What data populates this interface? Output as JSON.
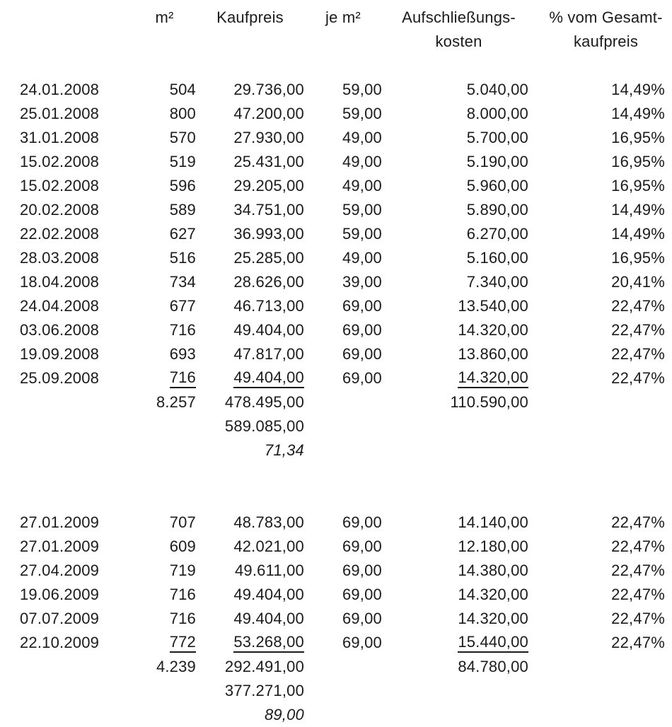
{
  "page": {
    "background_color": "#ffffff",
    "text_color": "#1b1b1b"
  },
  "table": {
    "headers": {
      "date": "",
      "m2": "m²",
      "kaufpreis": "Kaufpreis",
      "je_m2": "je m²",
      "aufschliessungskosten_line1": "Aufschließungs-",
      "aufschliessungskosten_line2": "kosten",
      "pct_line1": "% vom Gesamt-",
      "pct_line2": "kaufpreis"
    },
    "sections": [
      {
        "year": "2008",
        "rows": [
          {
            "date": "24.01.2008",
            "m2": "504",
            "kaufpreis": "29.736,00",
            "je_m2": "59,00",
            "aufschliessung": "5.040,00",
            "pct": "14,49%"
          },
          {
            "date": "25.01.2008",
            "m2": "800",
            "kaufpreis": "47.200,00",
            "je_m2": "59,00",
            "aufschliessung": "8.000,00",
            "pct": "14,49%"
          },
          {
            "date": "31.01.2008",
            "m2": "570",
            "kaufpreis": "27.930,00",
            "je_m2": "49,00",
            "aufschliessung": "5.700,00",
            "pct": "16,95%"
          },
          {
            "date": "15.02.2008",
            "m2": "519",
            "kaufpreis": "25.431,00",
            "je_m2": "49,00",
            "aufschliessung": "5.190,00",
            "pct": "16,95%"
          },
          {
            "date": "15.02.2008",
            "m2": "596",
            "kaufpreis": "29.205,00",
            "je_m2": "49,00",
            "aufschliessung": "5.960,00",
            "pct": "16,95%"
          },
          {
            "date": "20.02.2008",
            "m2": "589",
            "kaufpreis": "34.751,00",
            "je_m2": "59,00",
            "aufschliessung": "5.890,00",
            "pct": "14,49%"
          },
          {
            "date": "22.02.2008",
            "m2": "627",
            "kaufpreis": "36.993,00",
            "je_m2": "59,00",
            "aufschliessung": "6.270,00",
            "pct": "14,49%"
          },
          {
            "date": "28.03.2008",
            "m2": "516",
            "kaufpreis": "25.285,00",
            "je_m2": "49,00",
            "aufschliessung": "5.160,00",
            "pct": "16,95%"
          },
          {
            "date": "18.04.2008",
            "m2": "734",
            "kaufpreis": "28.626,00",
            "je_m2": "39,00",
            "aufschliessung": "7.340,00",
            "pct": "20,41%"
          },
          {
            "date": "24.04.2008",
            "m2": "677",
            "kaufpreis": "46.713,00",
            "je_m2": "69,00",
            "aufschliessung": "13.540,00",
            "pct": "22,47%"
          },
          {
            "date": "03.06.2008",
            "m2": "716",
            "kaufpreis": "49.404,00",
            "je_m2": "69,00",
            "aufschliessung": "14.320,00",
            "pct": "22,47%"
          },
          {
            "date": "19.09.2008",
            "m2": "693",
            "kaufpreis": "47.817,00",
            "je_m2": "69,00",
            "aufschliessung": "13.860,00",
            "pct": "22,47%"
          },
          {
            "date": "25.09.2008",
            "m2": "716",
            "kaufpreis": "49.404,00",
            "je_m2": "69,00",
            "aufschliessung": "14.320,00",
            "pct": "22,47%"
          }
        ],
        "sum_m2": "8.257",
        "sum_kaufpreis": "478.495,00",
        "sum_aufschliessung": "110.590,00",
        "total_gesamt": "589.085,00",
        "avg_je_m2": "71,34"
      },
      {
        "year": "2009",
        "rows": [
          {
            "date": "27.01.2009",
            "m2": "707",
            "kaufpreis": "48.783,00",
            "je_m2": "69,00",
            "aufschliessung": "14.140,00",
            "pct": "22,47%"
          },
          {
            "date": "27.01.2009",
            "m2": "609",
            "kaufpreis": "42.021,00",
            "je_m2": "69,00",
            "aufschliessung": "12.180,00",
            "pct": "22,47%"
          },
          {
            "date": "27.04.2009",
            "m2": "719",
            "kaufpreis": "49.611,00",
            "je_m2": "69,00",
            "aufschliessung": "14.380,00",
            "pct": "22,47%"
          },
          {
            "date": "19.06.2009",
            "m2": "716",
            "kaufpreis": "49.404,00",
            "je_m2": "69,00",
            "aufschliessung": "14.320,00",
            "pct": "22,47%"
          },
          {
            "date": "07.07.2009",
            "m2": "716",
            "kaufpreis": "49.404,00",
            "je_m2": "69,00",
            "aufschliessung": "14.320,00",
            "pct": "22,47%"
          },
          {
            "date": "22.10.2009",
            "m2": "772",
            "kaufpreis": "53.268,00",
            "je_m2": "69,00",
            "aufschliessung": "15.440,00",
            "pct": "22,47%"
          }
        ],
        "sum_m2": "4.239",
        "sum_kaufpreis": "292.491,00",
        "sum_aufschliessung": "84.780,00",
        "total_gesamt": "377.271,00",
        "avg_je_m2": "89,00"
      }
    ]
  }
}
